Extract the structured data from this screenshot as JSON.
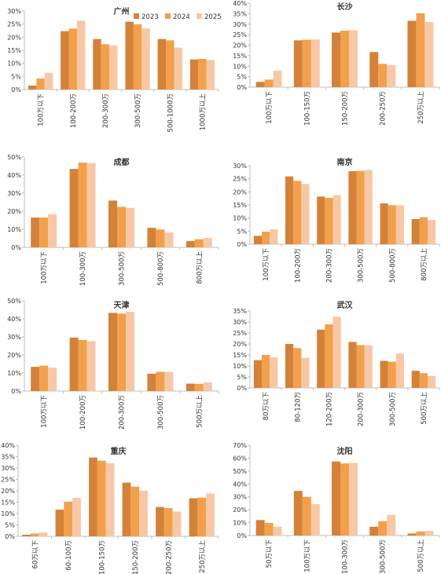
{
  "colors": {
    "2023": "#d4823a",
    "2024": "#f2a04c",
    "2025": "#f8c8a6",
    "axis": "#bfbfbf"
  },
  "legend": [
    "2023",
    "2024",
    "2025"
  ],
  "chart_data": [
    {
      "type": "bar",
      "title": "广州",
      "ylim": [
        0,
        30
      ],
      "yticks": [
        "0%",
        "5%",
        "10%",
        "15%",
        "20%",
        "25%",
        "30%"
      ],
      "categories": [
        "100万以下",
        "100-200万",
        "200-300万",
        "300-500万",
        "500-1000万",
        "1000万以上"
      ],
      "series": [
        {
          "name": "2023",
          "values": [
            1.5,
            22.3,
            19.3,
            25.9,
            19.3,
            11.5
          ]
        },
        {
          "name": "2024",
          "values": [
            4.2,
            23.3,
            17.3,
            24.9,
            18.8,
            11.7
          ]
        },
        {
          "name": "2025",
          "values": [
            6.4,
            26.3,
            16.8,
            23.3,
            16.0,
            11.3
          ]
        }
      ]
    },
    {
      "type": "bar",
      "title": "长沙",
      "ylim": [
        0,
        40
      ],
      "yticks": [
        "0%",
        "5%",
        "10%",
        "15%",
        "20%",
        "25%",
        "30%",
        "35%",
        "40%"
      ],
      "categories": [
        "100万以下",
        "100-150万",
        "150-200万",
        "200-250万",
        "250万以上"
      ],
      "series": [
        {
          "name": "2023",
          "values": [
            2.5,
            22.3,
            26.0,
            16.7,
            31.6
          ]
        },
        {
          "name": "2024",
          "values": [
            3.6,
            22.6,
            26.9,
            11.1,
            35.2
          ]
        },
        {
          "name": "2025",
          "values": [
            7.8,
            22.7,
            27.1,
            10.5,
            31.0
          ]
        }
      ]
    },
    {
      "type": "bar",
      "title": "成都",
      "ylim": [
        0,
        50
      ],
      "yticks": [
        "0%",
        "10%",
        "20%",
        "30%",
        "40%",
        "50%"
      ],
      "categories": [
        "100万以下",
        "100-300万",
        "300-500万",
        "500-800万",
        "800万以上"
      ],
      "series": [
        {
          "name": "2023",
          "values": [
            16.5,
            43.4,
            25.9,
            10.8,
            3.5
          ]
        },
        {
          "name": "2024",
          "values": [
            16.5,
            46.9,
            22.4,
            9.9,
            4.5
          ]
        },
        {
          "name": "2025",
          "values": [
            18.4,
            46.7,
            21.9,
            8.3,
            5.2
          ]
        }
      ]
    },
    {
      "type": "bar",
      "title": "南京",
      "ylim": [
        0,
        30
      ],
      "yticks": [
        "0%",
        "5%",
        "10%",
        "15%",
        "20%",
        "25%",
        "30%"
      ],
      "categories": [
        "100万以下",
        "100-200万",
        "200-300万",
        "300-500万",
        "500-800万",
        "800万以上"
      ],
      "series": [
        {
          "name": "2023",
          "values": [
            3.2,
            25.9,
            18.2,
            27.9,
            15.6,
            9.6
          ]
        },
        {
          "name": "2024",
          "values": [
            4.8,
            24.2,
            17.7,
            28.0,
            14.9,
            10.3
          ]
        },
        {
          "name": "2025",
          "values": [
            5.7,
            23.0,
            18.8,
            28.4,
            14.9,
            9.3
          ]
        }
      ]
    },
    {
      "type": "bar",
      "title": "天津",
      "ylim": [
        0,
        50
      ],
      "yticks": [
        "0%",
        "10%",
        "20%",
        "30%",
        "40%",
        "50%"
      ],
      "categories": [
        "100万以下",
        "100-200万",
        "200-300万",
        "300-500万",
        "500万以上"
      ],
      "series": [
        {
          "name": "2023",
          "values": [
            13.4,
            29.6,
            43.3,
            9.6,
            4.1
          ]
        },
        {
          "name": "2024",
          "values": [
            14.1,
            28.3,
            42.9,
            10.6,
            4.0
          ]
        },
        {
          "name": "2025",
          "values": [
            13.0,
            27.6,
            43.9,
            10.6,
            4.8
          ]
        }
      ]
    },
    {
      "type": "bar",
      "title": "武汉",
      "ylim": [
        0,
        35
      ],
      "yticks": [
        "0%",
        "5%",
        "10%",
        "15%",
        "20%",
        "25%",
        "30%",
        "35%"
      ],
      "categories": [
        "80万以下",
        "80-120万",
        "120-200万",
        "200-300万",
        "300-500万",
        "500万以上"
      ],
      "series": [
        {
          "name": "2023",
          "values": [
            12.6,
            20.0,
            26.5,
            20.9,
            12.3,
            7.8
          ]
        },
        {
          "name": "2024",
          "values": [
            15.0,
            18.1,
            28.9,
            19.5,
            11.9,
            6.7
          ]
        },
        {
          "name": "2025",
          "values": [
            13.9,
            13.7,
            32.3,
            19.4,
            15.6,
            5.4
          ]
        }
      ]
    },
    {
      "type": "bar",
      "title": "重庆",
      "ylim": [
        0,
        40
      ],
      "yticks": [
        "0%",
        "5%",
        "10%",
        "15%",
        "20%",
        "25%",
        "30%",
        "35%",
        "40%"
      ],
      "categories": [
        "60万以下",
        "60-100万",
        "100-150万",
        "150-200万",
        "200-250万",
        "250万以上"
      ],
      "series": [
        {
          "name": "2023",
          "values": [
            0.7,
            11.7,
            34.6,
            23.6,
            12.9,
            16.7
          ]
        },
        {
          "name": "2024",
          "values": [
            1.2,
            15.2,
            33.2,
            21.8,
            12.4,
            17.0
          ]
        },
        {
          "name": "2025",
          "values": [
            1.7,
            16.9,
            32.1,
            20.0,
            10.9,
            18.8
          ]
        }
      ]
    },
    {
      "type": "bar",
      "title": "沈阳",
      "ylim": [
        0,
        70
      ],
      "yticks": [
        "0%",
        "10%",
        "20%",
        "30%",
        "40%",
        "50%",
        "60%",
        "70%"
      ],
      "categories": [
        "50万以下",
        "100万以下",
        "100-300万",
        "300-500万",
        "500万以上"
      ],
      "series": [
        {
          "name": "2023",
          "values": [
            12.0,
            34.6,
            57.4,
            6.8,
            1.6
          ]
        },
        {
          "name": "2024",
          "values": [
            9.8,
            30.0,
            55.9,
            11.1,
            3.1
          ]
        },
        {
          "name": "2025",
          "values": [
            6.9,
            24.4,
            56.4,
            16.0,
            3.6
          ]
        }
      ]
    }
  ]
}
